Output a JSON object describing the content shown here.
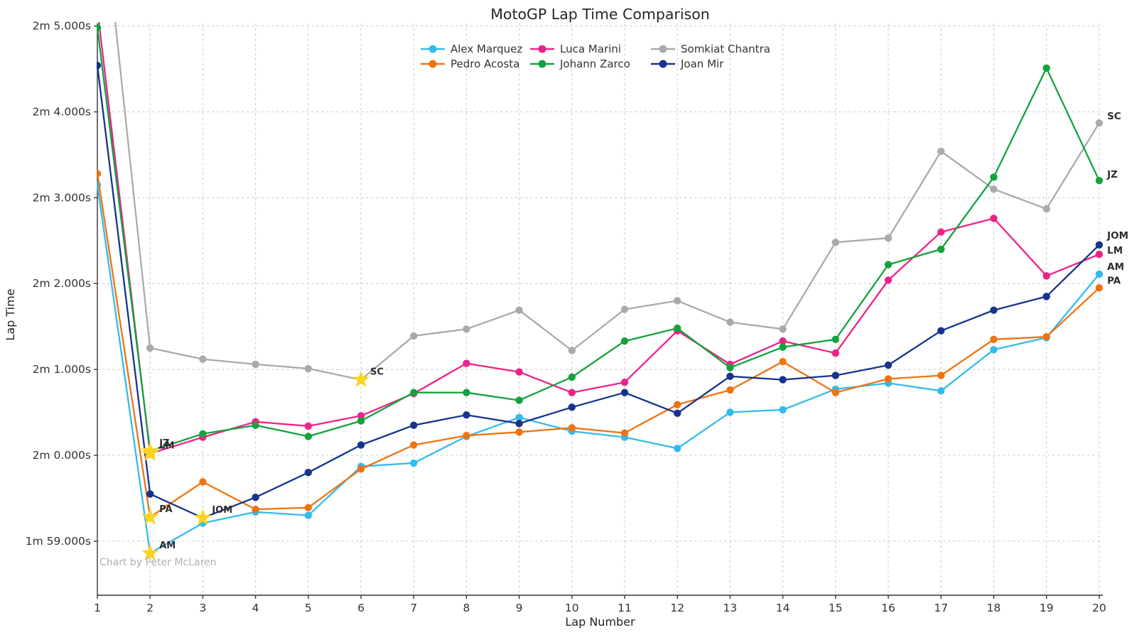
{
  "watermark": "Chart by Peter McLaren",
  "chart_data": {
    "type": "line",
    "title": "MotoGP Lap Time Comparison",
    "xlabel": "Lap Number",
    "ylabel": "Lap Time",
    "x": [
      1,
      2,
      3,
      4,
      5,
      6,
      7,
      8,
      9,
      10,
      11,
      12,
      13,
      14,
      15,
      16,
      17,
      18,
      19,
      20
    ],
    "xlim": [
      1,
      20.07
    ],
    "ylim": [
      118.37,
      125.03
    ],
    "grid": true,
    "legend_position": "top-center",
    "y_ticks": [
      {
        "value": 119,
        "label": "1m 59.000s"
      },
      {
        "value": 120,
        "label": "2m 0.000s"
      },
      {
        "value": 121,
        "label": "2m 1.000s"
      },
      {
        "value": 122,
        "label": "2m 2.000s"
      },
      {
        "value": 123,
        "label": "2m 3.000s"
      },
      {
        "value": 124,
        "label": "2m 4.000s"
      },
      {
        "value": 125,
        "label": "2m 5.000s"
      }
    ],
    "series": [
      {
        "name": "Alex Marquez",
        "abbr": "AM",
        "color": "#33bbee",
        "values": [
          123.15,
          118.86,
          119.21,
          119.34,
          119.3,
          119.87,
          119.91,
          120.22,
          120.44,
          120.28,
          120.21,
          120.08,
          120.5,
          120.53,
          120.77,
          120.84,
          120.75,
          121.23,
          121.37,
          122.11
        ]
      },
      {
        "name": "Pedro Acosta",
        "abbr": "PA",
        "color": "#ee7411",
        "values": [
          123.28,
          119.28,
          119.69,
          119.37,
          119.39,
          119.84,
          120.12,
          120.23,
          120.27,
          120.32,
          120.26,
          120.59,
          120.76,
          121.09,
          120.73,
          120.89,
          120.93,
          121.35,
          121.38,
          121.95
        ]
      },
      {
        "name": "Luca Marini",
        "abbr": "LM",
        "color": "#ee2288",
        "values": [
          125.2,
          120.02,
          120.21,
          120.39,
          120.34,
          120.46,
          120.72,
          121.07,
          120.97,
          120.73,
          120.85,
          121.45,
          121.06,
          121.33,
          121.19,
          122.04,
          122.6,
          122.76,
          122.09,
          122.34
        ]
      },
      {
        "name": "Johann Zarco",
        "abbr": "JZ",
        "color": "#12a33e",
        "values": [
          124.98,
          120.05,
          120.25,
          120.35,
          120.22,
          120.4,
          120.73,
          120.73,
          120.64,
          120.91,
          121.33,
          121.48,
          121.02,
          121.26,
          121.35,
          122.22,
          122.4,
          123.24,
          124.51,
          123.2
        ]
      },
      {
        "name": "Somkiat Chantra",
        "abbr": "SC",
        "color": "#aaaaaa",
        "values": [
          127.0,
          121.25,
          121.12,
          121.06,
          121.01,
          120.88,
          121.39,
          121.47,
          121.69,
          121.22,
          121.7,
          121.8,
          121.55,
          121.47,
          122.48,
          122.53,
          123.54,
          123.1,
          122.87,
          123.87
        ]
      },
      {
        "name": "Joan Mir",
        "abbr": "JOM",
        "color": "#17338c",
        "values": [
          124.54,
          119.55,
          119.27,
          119.51,
          119.8,
          120.12,
          120.35,
          120.47,
          120.37,
          120.56,
          120.73,
          120.49,
          120.92,
          120.88,
          120.93,
          121.05,
          121.45,
          121.69,
          121.85,
          122.45
        ]
      }
    ],
    "fastest_laps": [
      {
        "series": "Alex Marquez",
        "abbr": "AM",
        "lap": 2,
        "time": 118.86
      },
      {
        "series": "Pedro Acosta",
        "abbr": "PA",
        "lap": 2,
        "time": 119.28
      },
      {
        "series": "Johann Zarco",
        "abbr": "JZ",
        "lap": 2,
        "time": 120.05
      },
      {
        "series": "Luca Marini",
        "abbr": "LM",
        "lap": 2,
        "time": 120.02
      },
      {
        "series": "Somkiat Chantra",
        "abbr": "SC",
        "lap": 6,
        "time": 120.88
      },
      {
        "series": "Joan Mir",
        "abbr": "JOM",
        "lap": 3,
        "time": 119.27
      }
    ],
    "star_color": "#ffd21f",
    "label_color": "#2d2d2d"
  }
}
